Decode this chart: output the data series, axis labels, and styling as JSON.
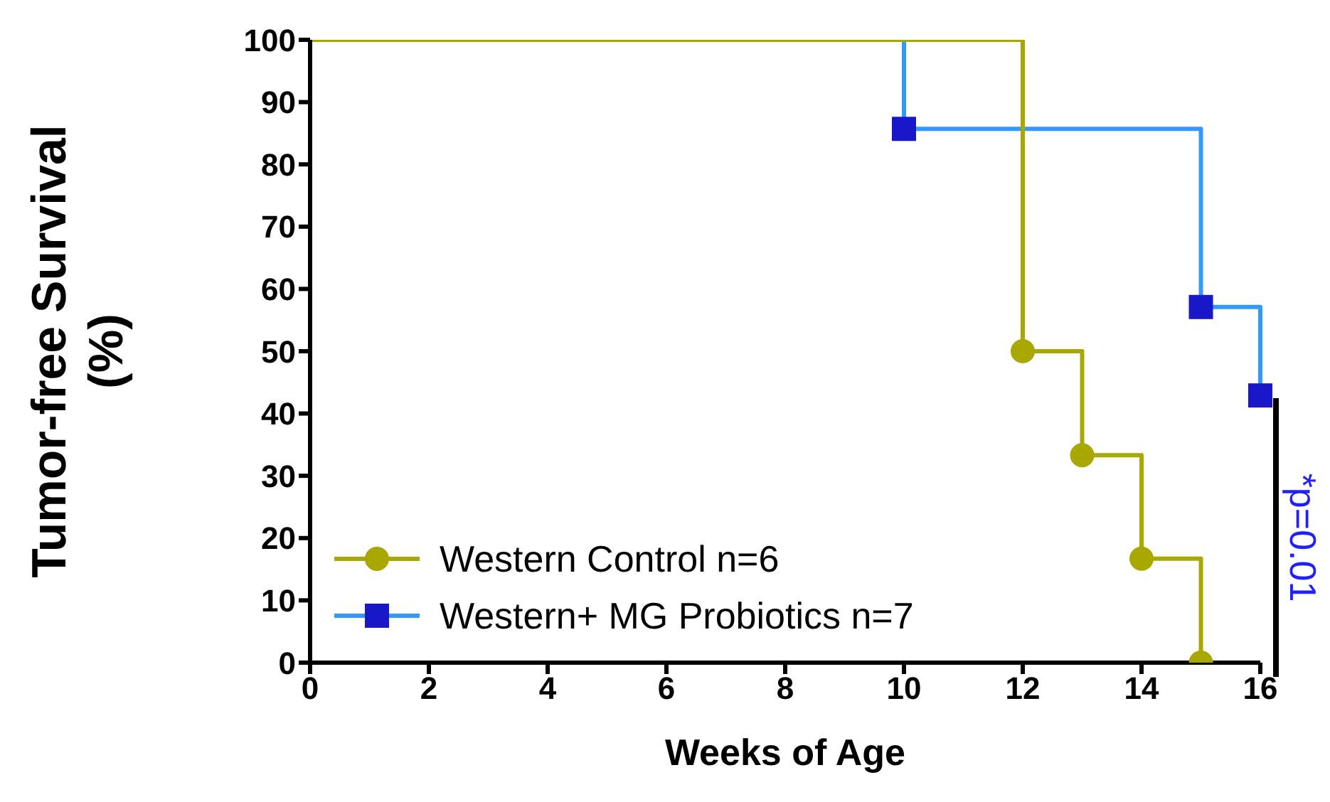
{
  "chart_data": {
    "type": "step",
    "xlabel": "Weeks of Age",
    "ylabel": "Tumor-free Survival (%)",
    "xlim": [
      0,
      16
    ],
    "xticks": [
      0,
      2,
      4,
      6,
      8,
      10,
      12,
      14,
      16
    ],
    "ylim": [
      0,
      100
    ],
    "yticks": [
      0,
      10,
      20,
      30,
      40,
      50,
      60,
      70,
      80,
      90,
      100
    ],
    "series": [
      {
        "name": "Western Control n=6",
        "color": "#a8a800",
        "marker": "circle",
        "x": [
          0,
          12,
          13,
          14,
          15
        ],
        "values": [
          100,
          50,
          33.3,
          16.7,
          0
        ]
      },
      {
        "name": "Western+ MG Probiotics n=7",
        "color": "#3399ff",
        "marker": "square",
        "x": [
          0,
          10,
          15,
          16
        ],
        "values": [
          100,
          85.7,
          57.1,
          42.9
        ]
      }
    ],
    "annotations": [
      "*p=0.01"
    ],
    "legend": "bottom left"
  }
}
